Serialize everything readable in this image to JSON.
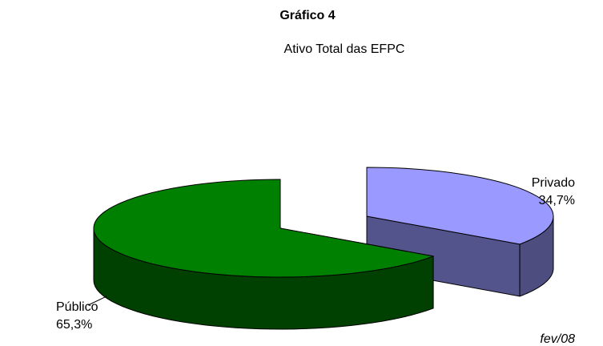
{
  "chart_data": {
    "type": "pie3d",
    "title": "Gráfico 4",
    "subtitle": "Ativo Total das EFPC",
    "categories": [
      "Privado",
      "Público"
    ],
    "values": [
      34.7,
      65.3
    ],
    "value_labels": [
      "34,7%",
      "65,3%"
    ],
    "colors": [
      "#9999ff",
      "#008000"
    ],
    "note": "fev/08"
  }
}
